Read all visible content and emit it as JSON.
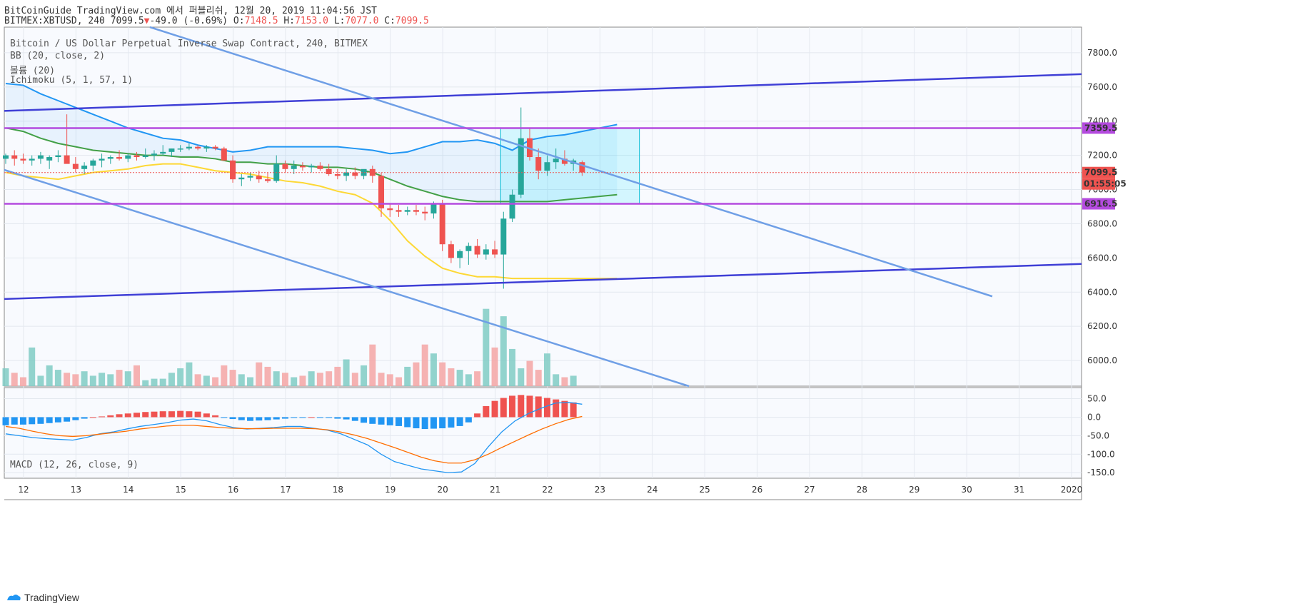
{
  "header": {
    "line1": "BitCoinGuide TradingView.com 에서 퍼블리쉬, 12월 20, 2019 11:04:56 JST",
    "symbol_interval": "BITMEX:XBTUSD, 240 7099.5",
    "change": "-49.0 (-0.69%)",
    "o_label": "O:",
    "o": "7148.5",
    "h_label": "H:",
    "h": "7153.0",
    "l_label": "L:",
    "l": "7077.0",
    "c_label": "C:",
    "c": "7099.5"
  },
  "legend": {
    "title": "Bitcoin / US Dollar Perpetual Inverse Swap Contract, 240, BITMEX",
    "bb": "BB (20, close, 2)",
    "vol": "볼륨 (20)",
    "ichimoku": "Ichimoku (5, 1, 57, 1)",
    "macd": "MACD (12, 26, close, 9)"
  },
  "footer": {
    "brand": "TradingView"
  },
  "colors": {
    "up": "#26a69a",
    "down": "#ef5350",
    "channel": "#3f3fd6",
    "line2": "#6f9fe6",
    "level": "#b44bdf",
    "bb": "#2196f3",
    "sma": "#43a047",
    "cloud": "#90caf9",
    "yellow": "#fdd835",
    "box": "#00e5ff",
    "macd": "#2196f3",
    "signal": "#ff6d00"
  },
  "chart_data": [
    {
      "type": "candlestick",
      "title": "Bitcoin / US Dollar Perpetual Inverse Swap Contract, 240, BITMEX",
      "x_ticks": [
        "12",
        "13",
        "14",
        "15",
        "16",
        "17",
        "18",
        "19",
        "20",
        "21",
        "22",
        "23",
        "24",
        "25",
        "26",
        "27",
        "28",
        "29",
        "30",
        "31",
        "2020"
      ],
      "y_ticks": [
        "7800.0",
        "7600.0",
        "7400.0",
        "7200.0",
        "7000.0",
        "6800.0",
        "6600.0",
        "6400.0",
        "6200.0",
        "6000.0"
      ],
      "ylim": [
        5850,
        7950
      ],
      "price_labels": [
        {
          "value": 7359.5,
          "text": "7359.5",
          "color": "#b44bdf"
        },
        {
          "value": 7099.5,
          "text": "7099.5",
          "color": "#ef5350"
        },
        {
          "value": 6916.5,
          "text": "6916.5",
          "color": "#b44bdf"
        }
      ],
      "countdown": "01:55:05",
      "horizontal_levels": [
        7359.5,
        6916.5
      ],
      "candles_ohlc": [
        [
          7180,
          7210,
          7150,
          7200
        ],
        [
          7200,
          7230,
          7140,
          7180
        ],
        [
          7180,
          7210,
          7150,
          7170
        ],
        [
          7170,
          7200,
          7140,
          7180
        ],
        [
          7180,
          7220,
          7150,
          7200
        ],
        [
          7170,
          7200,
          7120,
          7190
        ],
        [
          7190,
          7230,
          7160,
          7200
        ],
        [
          7200,
          7440,
          7170,
          7150
        ],
        [
          7150,
          7190,
          7100,
          7120
        ],
        [
          7120,
          7160,
          7090,
          7140
        ],
        [
          7140,
          7180,
          7110,
          7170
        ],
        [
          7170,
          7210,
          7130,
          7180
        ],
        [
          7180,
          7200,
          7150,
          7190
        ],
        [
          7190,
          7230,
          7170,
          7180
        ],
        [
          7180,
          7210,
          7160,
          7200
        ],
        [
          7200,
          7220,
          7170,
          7190
        ],
        [
          7190,
          7240,
          7180,
          7200
        ],
        [
          7200,
          7230,
          7170,
          7210
        ],
        [
          7210,
          7260,
          7200,
          7220
        ],
        [
          7220,
          7240,
          7190,
          7240
        ],
        [
          7240,
          7260,
          7220,
          7240
        ],
        [
          7240,
          7270,
          7230,
          7250
        ],
        [
          7250,
          7260,
          7230,
          7240
        ],
        [
          7240,
          7260,
          7220,
          7250
        ],
        [
          7250,
          7260,
          7230,
          7240
        ],
        [
          7240,
          7250,
          7170,
          7170
        ],
        [
          7170,
          7200,
          7040,
          7060
        ],
        [
          7060,
          7090,
          7020,
          7070
        ],
        [
          7070,
          7100,
          7050,
          7080
        ],
        [
          7080,
          7110,
          7040,
          7060
        ],
        [
          7060,
          7100,
          7040,
          7050
        ],
        [
          7050,
          7200,
          7040,
          7150
        ],
        [
          7150,
          7170,
          7100,
          7120
        ],
        [
          7120,
          7170,
          7090,
          7140
        ],
        [
          7140,
          7160,
          7110,
          7130
        ],
        [
          7130,
          7150,
          7100,
          7140
        ],
        [
          7140,
          7160,
          7110,
          7120
        ],
        [
          7120,
          7150,
          7080,
          7090
        ],
        [
          7090,
          7120,
          7060,
          7080
        ],
        [
          7080,
          7120,
          7050,
          7100
        ],
        [
          7100,
          7130,
          7060,
          7080
        ],
        [
          7080,
          7110,
          7060,
          7120
        ],
        [
          7120,
          7140,
          7040,
          7080
        ],
        [
          7080,
          7100,
          6840,
          6890
        ],
        [
          6890,
          6920,
          6840,
          6880
        ],
        [
          6880,
          6910,
          6840,
          6870
        ],
        [
          6870,
          6900,
          6850,
          6880
        ],
        [
          6880,
          6910,
          6850,
          6870
        ],
        [
          6870,
          6900,
          6820,
          6860
        ],
        [
          6860,
          6930,
          6830,
          6920
        ],
        [
          6920,
          6940,
          6640,
          6680
        ],
        [
          6680,
          6700,
          6570,
          6600
        ],
        [
          6600,
          6650,
          6540,
          6640
        ],
        [
          6640,
          6690,
          6560,
          6670
        ],
        [
          6670,
          6710,
          6600,
          6620
        ],
        [
          6620,
          6680,
          6590,
          6650
        ],
        [
          6650,
          6700,
          6600,
          6620
        ],
        [
          6620,
          6870,
          6420,
          6830
        ],
        [
          6830,
          7000,
          6810,
          6970
        ],
        [
          6970,
          7480,
          6950,
          7300
        ],
        [
          7300,
          7360,
          7170,
          7190
        ],
        [
          7190,
          7240,
          7060,
          7110
        ],
        [
          7110,
          7200,
          7080,
          7160
        ],
        [
          7160,
          7240,
          7120,
          7180
        ],
        [
          7180,
          7230,
          7140,
          7150
        ],
        [
          7150,
          7180,
          7110,
          7170
        ],
        [
          7160,
          7170,
          7080,
          7100
        ]
      ],
      "volume": [
        120,
        90,
        60,
        260,
        70,
        140,
        110,
        90,
        80,
        100,
        70,
        90,
        80,
        110,
        100,
        140,
        40,
        50,
        50,
        90,
        120,
        160,
        80,
        70,
        60,
        140,
        110,
        80,
        60,
        160,
        130,
        100,
        90,
        60,
        70,
        100,
        90,
        100,
        130,
        180,
        90,
        140,
        280,
        90,
        80,
        60,
        130,
        160,
        280,
        220,
        160,
        120,
        110,
        80,
        100,
        520,
        260,
        470,
        250,
        120,
        170,
        110,
        220,
        80,
        60,
        70
      ],
      "lines": [
        {
          "name": "BB upper",
          "points": [
            [
              0,
              7620
            ],
            [
              2,
              7610
            ],
            [
              4,
              7560
            ],
            [
              6,
              7520
            ],
            [
              8,
              7480
            ],
            [
              10,
              7440
            ],
            [
              12,
              7400
            ],
            [
              14,
              7360
            ],
            [
              16,
              7330
            ],
            [
              18,
              7300
            ],
            [
              20,
              7290
            ],
            [
              22,
              7260
            ],
            [
              24,
              7240
            ],
            [
              26,
              7220
            ],
            [
              28,
              7230
            ],
            [
              30,
              7250
            ],
            [
              32,
              7250
            ],
            [
              34,
              7250
            ],
            [
              36,
              7250
            ],
            [
              38,
              7250
            ],
            [
              40,
              7240
            ],
            [
              42,
              7230
            ],
            [
              44,
              7210
            ],
            [
              46,
              7220
            ],
            [
              48,
              7250
            ],
            [
              50,
              7280
            ],
            [
              52,
              7280
            ],
            [
              54,
              7290
            ],
            [
              56,
              7270
            ],
            [
              58,
              7230
            ],
            [
              60,
              7290
            ],
            [
              62,
              7310
            ],
            [
              64,
              7320
            ],
            [
              66,
              7340
            ],
            [
              68,
              7360
            ],
            [
              70,
              7380
            ]
          ]
        },
        {
          "name": "BB basis",
          "points": [
            [
              0,
              7360
            ],
            [
              2,
              7340
            ],
            [
              4,
              7300
            ],
            [
              6,
              7270
            ],
            [
              8,
              7250
            ],
            [
              10,
              7230
            ],
            [
              12,
              7220
            ],
            [
              14,
              7210
            ],
            [
              16,
              7200
            ],
            [
              18,
              7200
            ],
            [
              20,
              7190
            ],
            [
              22,
              7190
            ],
            [
              24,
              7180
            ],
            [
              26,
              7160
            ],
            [
              28,
              7160
            ],
            [
              30,
              7150
            ],
            [
              32,
              7150
            ],
            [
              34,
              7140
            ],
            [
              36,
              7130
            ],
            [
              38,
              7130
            ],
            [
              40,
              7120
            ],
            [
              42,
              7100
            ],
            [
              44,
              7060
            ],
            [
              46,
              7020
            ],
            [
              48,
              6990
            ],
            [
              50,
              6960
            ],
            [
              52,
              6940
            ],
            [
              54,
              6930
            ],
            [
              56,
              6930
            ],
            [
              58,
              6930
            ],
            [
              60,
              6930
            ],
            [
              62,
              6930
            ],
            [
              64,
              6940
            ],
            [
              66,
              6950
            ],
            [
              68,
              6960
            ],
            [
              70,
              6970
            ]
          ]
        },
        {
          "name": "BB lower",
          "points": [
            [
              0,
              7100
            ],
            [
              2,
              7080
            ],
            [
              4,
              7070
            ],
            [
              6,
              7060
            ],
            [
              8,
              7080
            ],
            [
              10,
              7100
            ],
            [
              12,
              7110
            ],
            [
              14,
              7120
            ],
            [
              16,
              7140
            ],
            [
              18,
              7150
            ],
            [
              20,
              7150
            ],
            [
              22,
              7130
            ],
            [
              24,
              7110
            ],
            [
              26,
              7100
            ],
            [
              28,
              7090
            ],
            [
              30,
              7070
            ],
            [
              32,
              7050
            ],
            [
              34,
              7040
            ],
            [
              36,
              7020
            ],
            [
              38,
              6990
            ],
            [
              40,
              6970
            ],
            [
              42,
              6920
            ],
            [
              44,
              6820
            ],
            [
              46,
              6700
            ],
            [
              48,
              6610
            ],
            [
              50,
              6540
            ],
            [
              52,
              6510
            ],
            [
              54,
              6490
            ],
            [
              56,
              6490
            ],
            [
              58,
              6480
            ],
            [
              60,
              6480
            ],
            [
              62,
              6480
            ],
            [
              64,
              6480
            ],
            [
              66,
              6480
            ],
            [
              68,
              6480
            ],
            [
              70,
              6480
            ]
          ]
        }
      ]
    },
    {
      "type": "bar",
      "title": "MACD (12, 26, close, 9)",
      "y_ticks": [
        "50.0",
        "0.0",
        "-50.0",
        "-100.0",
        "-150.0"
      ],
      "ylim": [
        -165,
        80
      ],
      "histogram": [
        -22,
        -20,
        -20,
        -19,
        -18,
        -16,
        -14,
        -12,
        -8,
        -4,
        0,
        2,
        5,
        8,
        10,
        12,
        14,
        15,
        16,
        16,
        17,
        16,
        15,
        10,
        5,
        -2,
        -5,
        -8,
        -10,
        -9,
        -8,
        -6,
        -4,
        -2,
        -1,
        0,
        -1,
        -2,
        -4,
        -6,
        -10,
        -15,
        -18,
        -20,
        -22,
        -24,
        -27,
        -30,
        -32,
        -31,
        -30,
        -28,
        -24,
        -14,
        10,
        30,
        44,
        52,
        58,
        60,
        58,
        56,
        52,
        48,
        44,
        40
      ],
      "macd_line": [
        -45,
        -50,
        -55,
        -58,
        -60,
        -62,
        -55,
        -45,
        -40,
        -32,
        -25,
        -20,
        -15,
        -8,
        -5,
        -10,
        -20,
        -28,
        -32,
        -30,
        -28,
        -25,
        -25,
        -30,
        -35,
        -45,
        -60,
        -75,
        -100,
        -120,
        -130,
        -140,
        -145,
        -150,
        -148,
        -125,
        -80,
        -40,
        -10,
        10,
        25,
        38,
        40,
        35
      ],
      "signal_line": [
        -25,
        -30,
        -38,
        -45,
        -50,
        -52,
        -50,
        -46,
        -42,
        -38,
        -32,
        -28,
        -24,
        -22,
        -22,
        -25,
        -28,
        -30,
        -31,
        -31,
        -30,
        -30,
        -30,
        -31,
        -34,
        -40,
        -48,
        -58,
        -70,
        -82,
        -95,
        -108,
        -118,
        -124,
        -124,
        -115,
        -100,
        -82,
        -65,
        -48,
        -32,
        -18,
        -6,
        2
      ]
    }
  ]
}
